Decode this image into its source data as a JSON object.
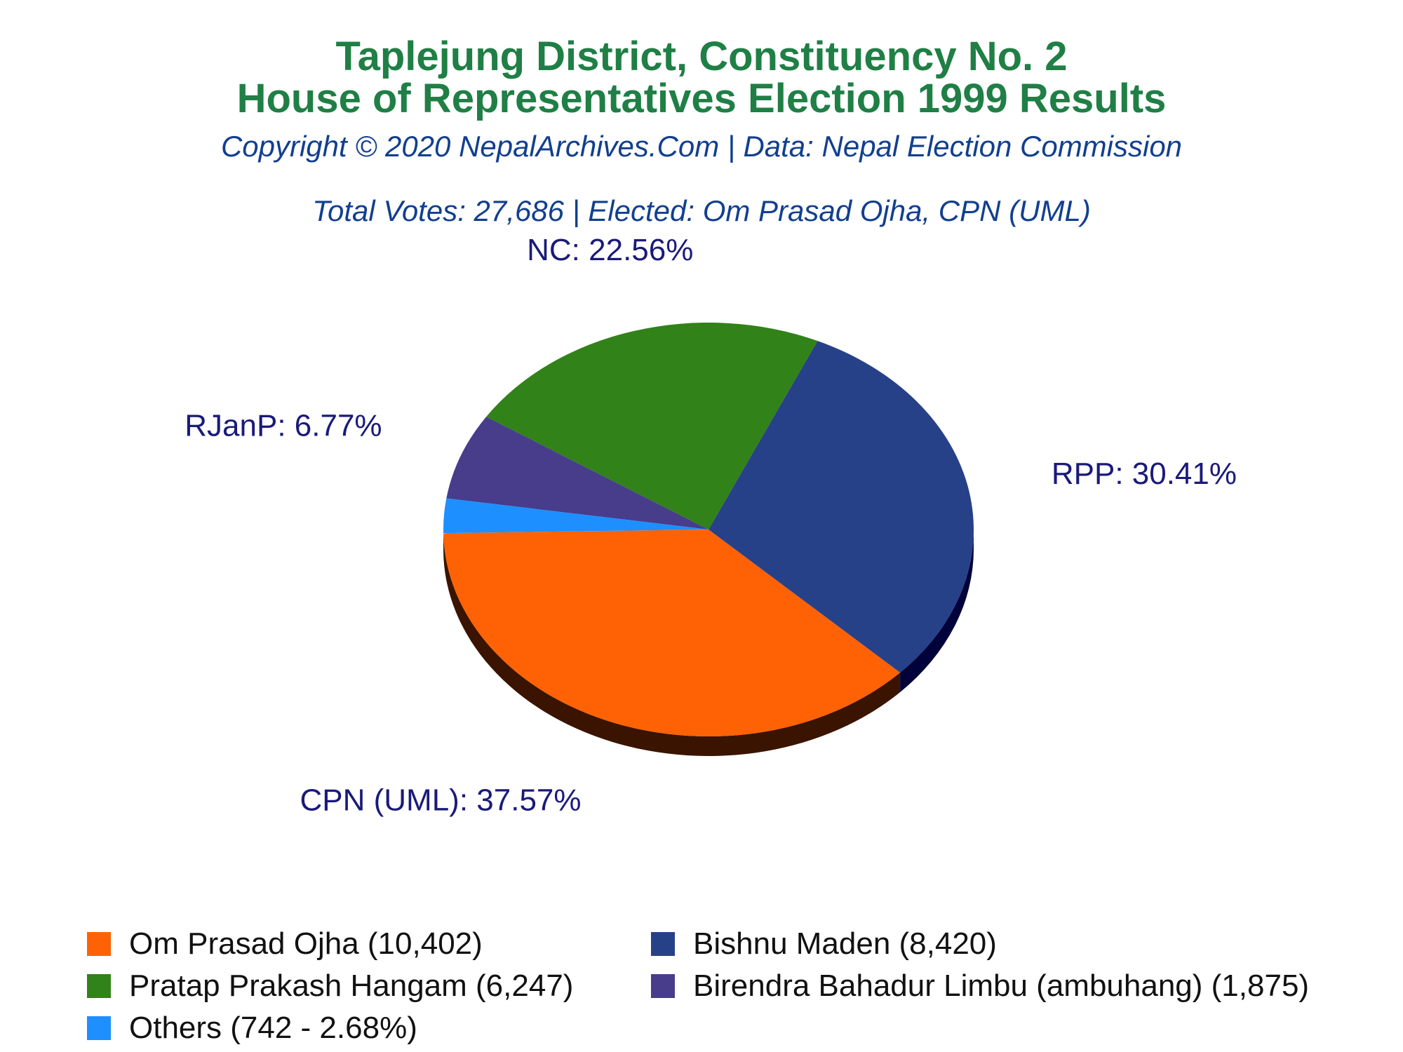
{
  "header": {
    "title_line1": "Taplejung District, Constituency No. 2",
    "title_line2": "House of Representatives Election 1999 Results",
    "copyright": "Copyright © 2020 NepalArchives.Com | Data: Nepal Election Commission",
    "summary": "Total Votes: 27,686 | Elected: Om Prasad Ojha, CPN (UML)"
  },
  "chart_data": {
    "type": "pie",
    "title": "Taplejung District, Constituency No. 2 House of Representatives Election 1999 Results",
    "total_votes": 27686,
    "slices": [
      {
        "party": "CPN (UML)",
        "candidate": "Om Prasad Ojha",
        "votes": 10402,
        "percent": 37.57,
        "label": "CPN (UML): 37.57%",
        "legend": "Om Prasad Ojha (10,402)",
        "color": "#ff6205",
        "side_color": "#3a1400"
      },
      {
        "party": "RPP",
        "candidate": "Bishnu Maden",
        "votes": 8420,
        "percent": 30.41,
        "label": "RPP: 30.41%",
        "legend": "Bishnu Maden (8,420)",
        "color": "#274189",
        "side_color": "#02023a"
      },
      {
        "party": "NC",
        "candidate": "Pratap Prakash Hangam",
        "votes": 6247,
        "percent": 22.56,
        "label": "NC: 22.56%",
        "legend": "Pratap Prakash Hangam (6,247)",
        "color": "#318218",
        "side_color": "#062a00"
      },
      {
        "party": "RJanP",
        "candidate": "Birendra Bahadur Limbu (ambuhang)",
        "votes": 1875,
        "percent": 6.77,
        "label": "RJanP: 6.77%",
        "legend": "Birendra Bahadur Limbu (ambuhang) (1,875)",
        "color": "#473d8b",
        "side_color": "#14104a"
      },
      {
        "party": "Others",
        "candidate": "Others",
        "votes": 742,
        "percent": 2.68,
        "label": "",
        "legend": "Others (742 - 2.68%)",
        "color": "#1e8fff",
        "side_color": "#0a3a7a"
      }
    ],
    "legend_placement": "bottom"
  }
}
